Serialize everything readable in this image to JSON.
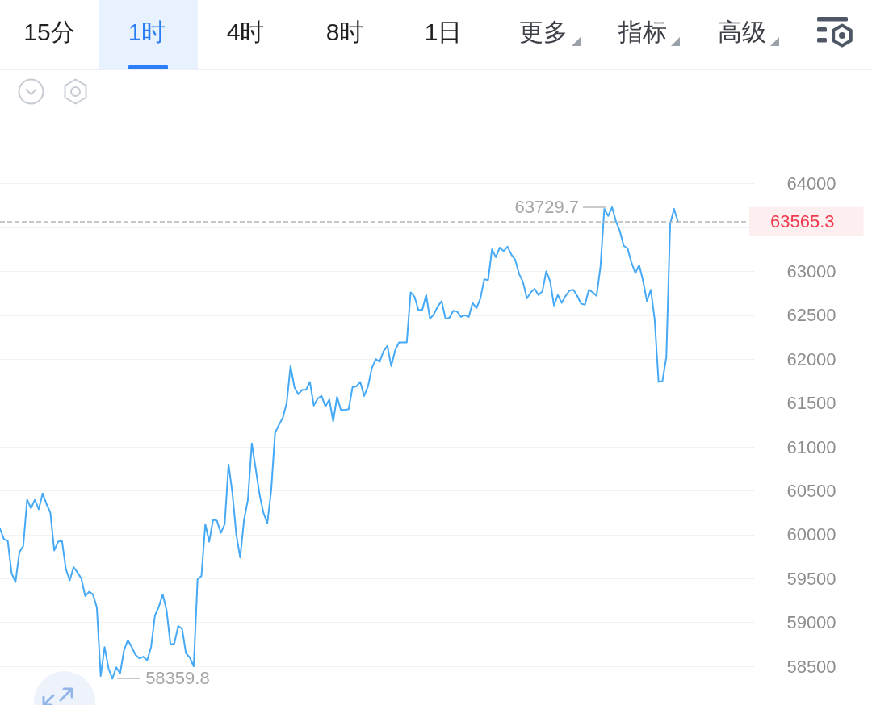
{
  "chart_data": {
    "type": "line",
    "annotations": [
      "15分",
      "1时",
      "4时",
      "8时",
      "1日",
      "更多",
      "指标",
      "高级",
      "63729.7",
      "58359.8"
    ],
    "categories": [
      null,
      null,
      null,
      null,
      null,
      null,
      null,
      null,
      null,
      null,
      null,
      null,
      null,
      null,
      null,
      null,
      null,
      null,
      null,
      null,
      null,
      null,
      null,
      null,
      null,
      null,
      null,
      null,
      null,
      null,
      null,
      null,
      null,
      null,
      null,
      null,
      null,
      null,
      null,
      null,
      null,
      null,
      null,
      null,
      null,
      null,
      null,
      null,
      null,
      null,
      null,
      null,
      null,
      null,
      null,
      null,
      null,
      null,
      null,
      null,
      null,
      null,
      null,
      null,
      null,
      null,
      null,
      null,
      null,
      null,
      null,
      null,
      null,
      null,
      null,
      null,
      null,
      null,
      null,
      null,
      null,
      null,
      null,
      null,
      null,
      null,
      null,
      null,
      null,
      null,
      null,
      null,
      null,
      null,
      null,
      null,
      null,
      null,
      null,
      null,
      null,
      null,
      null,
      null,
      null,
      null,
      null,
      null,
      null,
      null,
      null,
      null,
      null,
      null,
      null,
      null,
      null,
      null,
      null,
      null,
      null,
      null,
      null,
      null,
      null,
      null,
      null,
      null,
      null,
      null,
      null,
      null,
      null,
      null,
      null,
      null,
      null,
      null,
      null,
      null,
      null,
      null,
      null,
      null,
      null,
      null,
      null,
      null,
      null,
      null,
      null,
      null,
      null,
      null,
      null,
      null,
      null,
      null,
      null,
      null,
      null,
      null,
      null,
      null,
      null,
      null,
      null,
      null,
      null,
      null,
      null,
      null,
      null,
      null,
      null,
      null,
      null,
      null,
      null,
      null,
      null,
      null,
      null,
      null,
      null,
      null,
      null,
      null,
      null,
      null,
      null,
      null,
      null,
      null
    ],
    "values": [
      60070,
      59950,
      59930,
      59560,
      59460,
      59800,
      59870,
      60400,
      60300,
      60400,
      60290,
      60470,
      60350,
      60250,
      59820,
      59920,
      59930,
      59610,
      59480,
      59630,
      59570,
      59500,
      59300,
      59350,
      59320,
      59170,
      58390,
      58720,
      58480,
      58359.8,
      58490,
      58420,
      58680,
      58800,
      58720,
      58630,
      58590,
      58610,
      58570,
      58720,
      59080,
      59180,
      59320,
      59140,
      58750,
      58760,
      58960,
      58930,
      58650,
      58600,
      58500,
      59490,
      59530,
      60120,
      59920,
      60170,
      60160,
      60020,
      60120,
      60800,
      60470,
      60000,
      59740,
      60170,
      60400,
      61040,
      60750,
      60460,
      60250,
      60130,
      60500,
      61160,
      61250,
      61330,
      61500,
      61920,
      61680,
      61600,
      61650,
      61650,
      61740,
      61470,
      61550,
      61580,
      61460,
      61540,
      61290,
      61570,
      61420,
      61420,
      61430,
      61680,
      61690,
      61740,
      61580,
      61690,
      61900,
      62000,
      61970,
      62090,
      62150,
      61920,
      62100,
      62190,
      62190,
      62190,
      62760,
      62710,
      62560,
      62560,
      62730,
      62460,
      62510,
      62600,
      62660,
      62460,
      62470,
      62550,
      62540,
      62480,
      62500,
      62480,
      62640,
      62580,
      62690,
      62910,
      62900,
      63250,
      63160,
      63270,
      63230,
      63280,
      63190,
      63130,
      62970,
      62880,
      62690,
      62760,
      62800,
      62730,
      62770,
      63000,
      62890,
      62610,
      62730,
      62640,
      62720,
      62780,
      62790,
      62720,
      62630,
      62620,
      62790,
      62760,
      62720,
      63050,
      63710,
      63630,
      63729.7,
      63570,
      63460,
      63290,
      63260,
      63100,
      62980,
      63070,
      62890,
      62660,
      62790,
      62450,
      61740,
      61750,
      62020,
      63540,
      63710,
      63565.3,
      null,
      null,
      null,
      null,
      null,
      null,
      null,
      null,
      null,
      null,
      null,
      null,
      null,
      null,
      null,
      null,
      null,
      null
    ],
    "color": "#46a9f6",
    "ylim": [
      58060,
      65300
    ],
    "yticks": [
      58500,
      59000,
      59500,
      60000,
      60500,
      61000,
      61500,
      62000,
      62500,
      63000,
      {
        "value": 63500,
        "label": null
      },
      64000
    ],
    "ref_lines": [
      {
        "axis": "y",
        "value": 63565.3,
        "label": "63565.3",
        "color": "#b5b5b5",
        "line_style": "dashed"
      }
    ],
    "grid": "y",
    "tick_labels": "y"
  }
}
